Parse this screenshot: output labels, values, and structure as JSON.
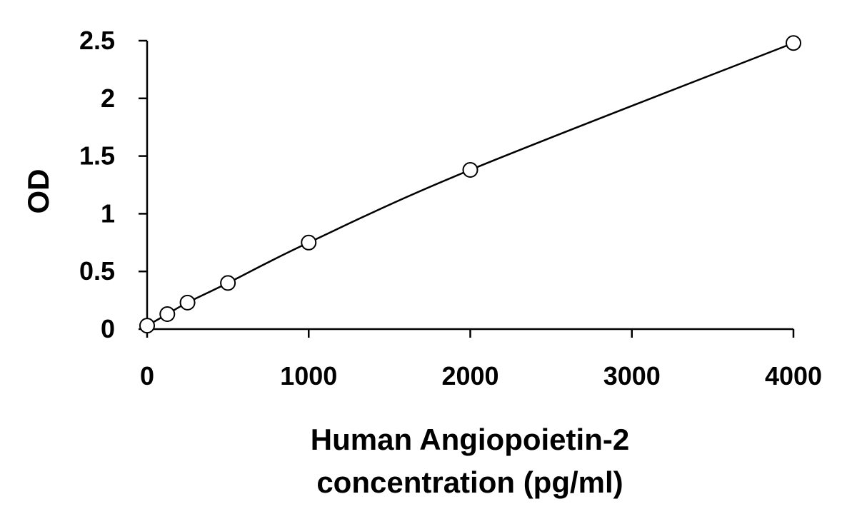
{
  "chart_data": {
    "type": "scatter",
    "xlabel_lines": [
      "Human Angiopoietin-2",
      "concentration (pg/ml)"
    ],
    "ylabel": "OD",
    "xlim": [
      0,
      4000
    ],
    "ylim": [
      0,
      2.5
    ],
    "x_ticks": [
      0,
      1000,
      2000,
      3000,
      4000
    ],
    "x_tick_labels": [
      "0",
      "1000",
      "2000",
      "3000",
      "4000"
    ],
    "y_ticks": [
      0,
      0.5,
      1,
      1.5,
      2,
      2.5
    ],
    "y_tick_labels": [
      "0",
      "0.5",
      "1",
      "1.5",
      "2",
      "2.5"
    ],
    "grid": false,
    "legend": "none",
    "points": [
      {
        "x": 0,
        "y": 0.03
      },
      {
        "x": 125,
        "y": 0.13
      },
      {
        "x": 250,
        "y": 0.23
      },
      {
        "x": 500,
        "y": 0.4
      },
      {
        "x": 1000,
        "y": 0.75
      },
      {
        "x": 2000,
        "y": 1.38
      },
      {
        "x": 4000,
        "y": 2.48
      }
    ],
    "marker": "open-circle",
    "fit_line": "smooth-curve",
    "colors": {
      "line": "#000000",
      "marker_fill": "#ffffff",
      "marker_stroke": "#000000"
    }
  }
}
